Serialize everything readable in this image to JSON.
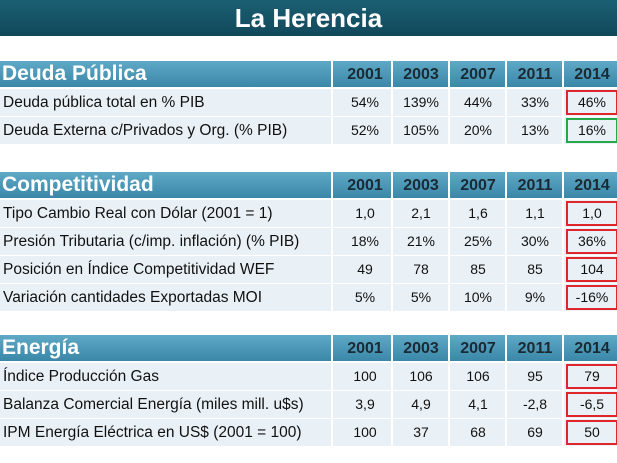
{
  "title": "La Herencia",
  "colors": {
    "title_bg": "#11485a",
    "header_bg": "#3a87a8",
    "row_bg": "#eaf1f6",
    "red_box": "#e0262b",
    "green_box": "#27a84a"
  },
  "sections": [
    {
      "name": "Deuda Pública",
      "years": [
        "2001",
        "2003",
        "2007",
        "2011",
        "2014"
      ],
      "rows": [
        {
          "label": "Deuda pública total en % PIB",
          "values": [
            "54%",
            "139%",
            "44%",
            "33%",
            "46%"
          ],
          "highlight": "red"
        },
        {
          "label": "Deuda Externa c/Privados y Org. (% PIB)",
          "values": [
            "52%",
            "105%",
            "20%",
            "13%",
            "16%"
          ],
          "highlight": "green"
        }
      ]
    },
    {
      "name": "Competitividad",
      "years": [
        "2001",
        "2003",
        "2007",
        "2011",
        "2014"
      ],
      "rows": [
        {
          "label": "Tipo Cambio Real con Dólar (2001 = 1)",
          "values": [
            "1,0",
            "2,1",
            "1,6",
            "1,1",
            "1,0"
          ],
          "highlight": "red"
        },
        {
          "label": "Presión Tributaria (c/imp. inflación) (% PIB)",
          "values": [
            "18%",
            "21%",
            "25%",
            "30%",
            "36%"
          ],
          "highlight": "red"
        },
        {
          "label": "Posición en Índice Competitividad WEF",
          "values": [
            "49",
            "78",
            "85",
            "85",
            "104"
          ],
          "highlight": "red"
        },
        {
          "label": "Variación cantidades Exportadas MOI",
          "values": [
            "5%",
            "5%",
            "10%",
            "9%",
            "-16%"
          ],
          "highlight": "red"
        }
      ]
    },
    {
      "name": "Energía",
      "years": [
        "2001",
        "2003",
        "2007",
        "2011",
        "2014"
      ],
      "rows": [
        {
          "label": "Índice Producción Gas",
          "values": [
            "100",
            "106",
            "106",
            "95",
            "79"
          ],
          "highlight": "red"
        },
        {
          "label": "Balanza Comercial Energía (miles mill. u$s)",
          "values": [
            "3,9",
            "4,9",
            "4,1",
            "-2,8",
            "-6,5"
          ],
          "highlight": "red"
        },
        {
          "label": "IPM Energía Eléctrica en US$ (2001 = 100)",
          "values": [
            "100",
            "37",
            "68",
            "69",
            "50"
          ],
          "highlight": "red"
        }
      ]
    }
  ]
}
